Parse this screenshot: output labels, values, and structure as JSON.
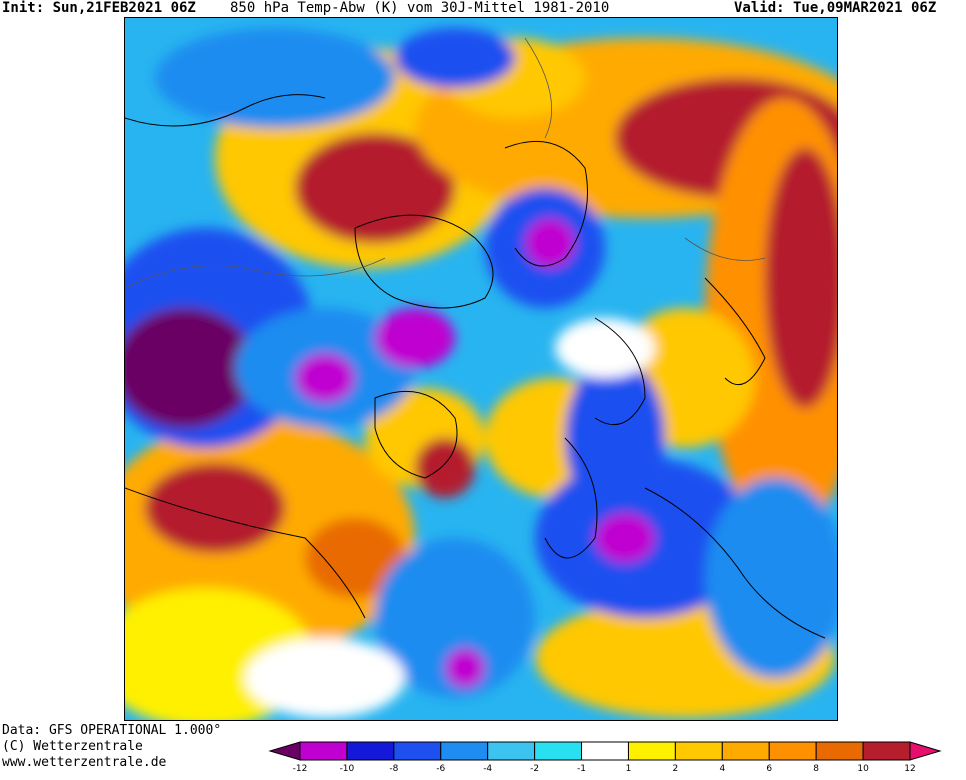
{
  "header": {
    "init": "Init: Sun,21FEB2021 06Z",
    "title": "850 hPa Temp-Abw (K) vom 30J-Mittel 1981-2010",
    "valid": "Valid: Tue,09MAR2021 06Z"
  },
  "footer": {
    "line1": "Data: GFS OPERATIONAL 1.000°",
    "line2": "(C) Wetterzentrale",
    "line3": "www.wetterzentrale.de"
  },
  "colorbar": {
    "colors": [
      "#6a0063",
      "#c000d0",
      "#1418d8",
      "#1e50f0",
      "#1e8cf0",
      "#3cc3f0",
      "#28e0f0",
      "#ffffff",
      "#fff000",
      "#ffc800",
      "#ffaa00",
      "#ff9100",
      "#e86a00",
      "#b41e2d",
      "#e60f6e"
    ],
    "tick_labels": [
      "-12",
      "-10",
      "-8",
      "-6",
      "-4",
      "-2",
      "-1",
      "1",
      "2",
      "4",
      "6",
      "8",
      "10",
      "12"
    ]
  },
  "map": {
    "projection": "polar stereographic, north pole",
    "contours": "0 K anomaly isolines, coastlines",
    "ocean_label": "0"
  }
}
